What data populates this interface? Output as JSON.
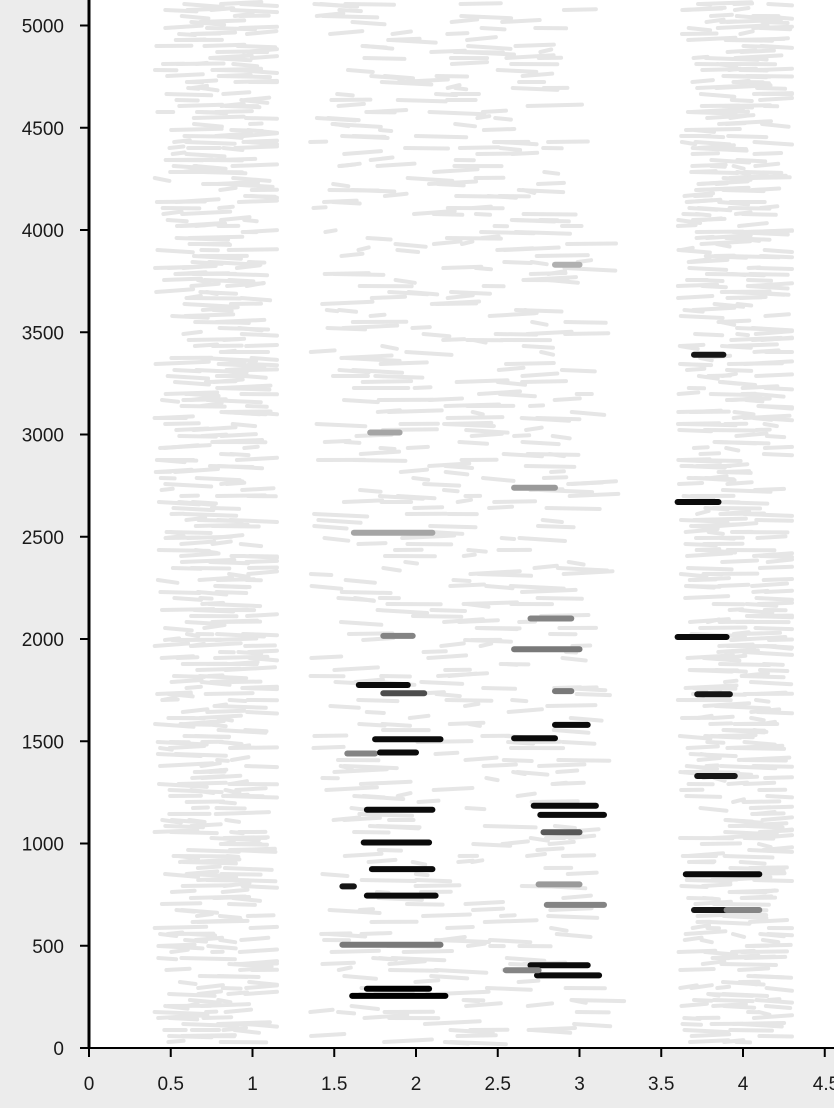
{
  "chart_data": {
    "type": "scatter",
    "title": "",
    "xlabel": "",
    "ylabel": "",
    "xlim": [
      0,
      4.5
    ],
    "ylim": [
      0,
      5000
    ],
    "x_ticks": [
      "0",
      "0.5",
      "1",
      "1.5",
      "2",
      "2.5",
      "3",
      "3.5",
      "4",
      "4.5"
    ],
    "y_ticks": [
      "0",
      "500",
      "1000",
      "1500",
      "2000",
      "2500",
      "3000",
      "3500",
      "4000",
      "4500",
      "5000"
    ],
    "grid": false,
    "legend": "none",
    "background_color": "#ffffff",
    "frame_color": "#ececec",
    "background_band_color": "#e6e6e6",
    "background_bands": [
      {
        "x_start": 0.4,
        "x_end": 1.15
      },
      {
        "x_start": 1.35,
        "x_end": 3.4
      },
      {
        "x_start": 3.6,
        "x_end": 4.3
      }
    ],
    "segments": [
      {
        "x1": 1.61,
        "x2": 2.18,
        "y": 255,
        "shade": 0.0
      },
      {
        "x1": 1.7,
        "x2": 2.08,
        "y": 290,
        "shade": 0.0
      },
      {
        "x1": 2.74,
        "x2": 3.12,
        "y": 355,
        "shade": 0.05
      },
      {
        "x1": 2.7,
        "x2": 3.05,
        "y": 405,
        "shade": 0.05
      },
      {
        "x1": 1.55,
        "x2": 2.15,
        "y": 505,
        "shade": 0.55
      },
      {
        "x1": 2.55,
        "x2": 2.75,
        "y": 380,
        "shade": 0.6
      },
      {
        "x1": 3.7,
        "x2": 3.9,
        "y": 675,
        "shade": 0.1
      },
      {
        "x1": 3.9,
        "x2": 4.1,
        "y": 675,
        "shade": 0.6
      },
      {
        "x1": 2.8,
        "x2": 3.15,
        "y": 700,
        "shade": 0.6
      },
      {
        "x1": 1.7,
        "x2": 2.12,
        "y": 745,
        "shade": 0.05
      },
      {
        "x1": 1.55,
        "x2": 1.62,
        "y": 790,
        "shade": 0.1
      },
      {
        "x1": 2.75,
        "x2": 3.0,
        "y": 800,
        "shade": 0.7
      },
      {
        "x1": 3.65,
        "x2": 4.1,
        "y": 850,
        "shade": 0.05
      },
      {
        "x1": 1.73,
        "x2": 2.1,
        "y": 875,
        "shade": 0.05
      },
      {
        "x1": 1.68,
        "x2": 2.08,
        "y": 1005,
        "shade": 0.05
      },
      {
        "x1": 2.78,
        "x2": 3.0,
        "y": 1055,
        "shade": 0.4
      },
      {
        "x1": 2.76,
        "x2": 3.15,
        "y": 1140,
        "shade": 0.05
      },
      {
        "x1": 1.7,
        "x2": 2.1,
        "y": 1165,
        "shade": 0.05
      },
      {
        "x1": 2.72,
        "x2": 3.1,
        "y": 1185,
        "shade": 0.05
      },
      {
        "x1": 3.72,
        "x2": 3.95,
        "y": 1330,
        "shade": 0.1
      },
      {
        "x1": 1.58,
        "x2": 1.75,
        "y": 1440,
        "shade": 0.6
      },
      {
        "x1": 1.78,
        "x2": 2.0,
        "y": 1445,
        "shade": 0.05
      },
      {
        "x1": 2.6,
        "x2": 2.85,
        "y": 1515,
        "shade": 0.05
      },
      {
        "x1": 1.75,
        "x2": 2.15,
        "y": 1510,
        "shade": 0.05
      },
      {
        "x1": 2.85,
        "x2": 3.05,
        "y": 1580,
        "shade": 0.05
      },
      {
        "x1": 3.72,
        "x2": 3.92,
        "y": 1730,
        "shade": 0.1
      },
      {
        "x1": 1.8,
        "x2": 2.05,
        "y": 1735,
        "shade": 0.35
      },
      {
        "x1": 1.65,
        "x2": 1.95,
        "y": 1775,
        "shade": 0.05
      },
      {
        "x1": 2.85,
        "x2": 2.95,
        "y": 1745,
        "shade": 0.55
      },
      {
        "x1": 2.6,
        "x2": 3.0,
        "y": 1950,
        "shade": 0.55
      },
      {
        "x1": 3.6,
        "x2": 3.9,
        "y": 2010,
        "shade": 0.05
      },
      {
        "x1": 1.8,
        "x2": 1.98,
        "y": 2015,
        "shade": 0.6
      },
      {
        "x1": 2.7,
        "x2": 2.95,
        "y": 2100,
        "shade": 0.6
      },
      {
        "x1": 1.62,
        "x2": 2.1,
        "y": 2520,
        "shade": 0.75
      },
      {
        "x1": 3.6,
        "x2": 3.85,
        "y": 2670,
        "shade": 0.05
      },
      {
        "x1": 2.6,
        "x2": 2.85,
        "y": 2740,
        "shade": 0.7
      },
      {
        "x1": 3.7,
        "x2": 3.88,
        "y": 3390,
        "shade": 0.1
      },
      {
        "x1": 1.72,
        "x2": 1.9,
        "y": 3010,
        "shade": 0.75
      },
      {
        "x1": 2.85,
        "x2": 3.0,
        "y": 3830,
        "shade": 0.8
      }
    ]
  }
}
